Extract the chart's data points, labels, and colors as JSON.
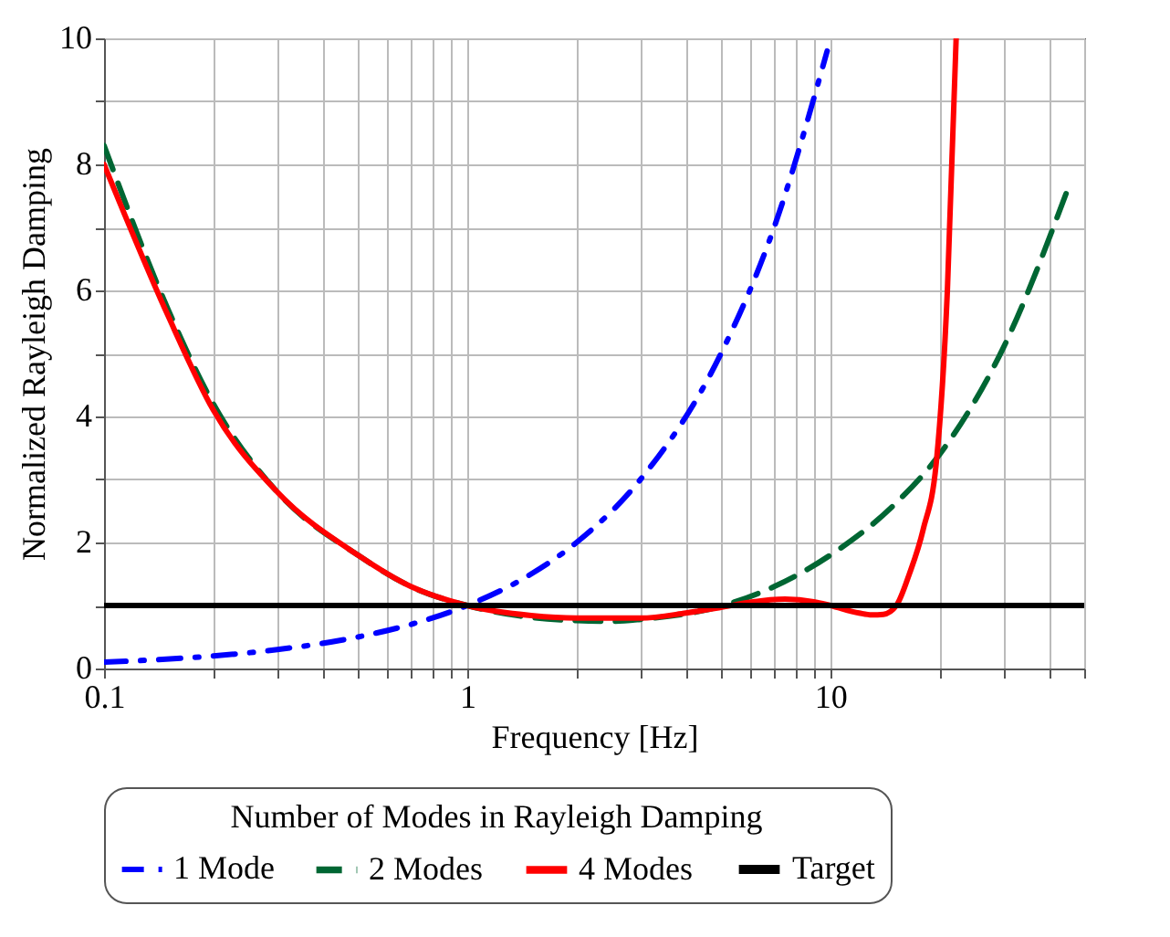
{
  "chart_data": {
    "type": "line",
    "xlabel": "Frequency [Hz]",
    "ylabel": "Normalized Rayleigh Damping",
    "legend_title": "Number of Modes in Rayleigh Damping",
    "log": "x",
    "grid": true,
    "legend": "bottom",
    "xlim": [
      0.1,
      50
    ],
    "ylim": [
      0,
      10
    ],
    "xticks": [
      0.1,
      {
        "value": 0.2,
        "label": null
      },
      {
        "value": 0.3,
        "label": null
      },
      {
        "value": 0.4,
        "label": null
      },
      {
        "value": 0.5,
        "label": null
      },
      {
        "value": 0.6,
        "label": null
      },
      {
        "value": 0.7,
        "label": null
      },
      {
        "value": 0.8,
        "label": null
      },
      {
        "value": 0.9,
        "label": null
      },
      1,
      {
        "value": 2,
        "label": null
      },
      {
        "value": 3,
        "label": null
      },
      {
        "value": 4,
        "label": null
      },
      {
        "value": 5,
        "label": null
      },
      {
        "value": 6,
        "label": null
      },
      {
        "value": 7,
        "label": null
      },
      {
        "value": 8,
        "label": null
      },
      {
        "value": 9,
        "label": null
      },
      10,
      {
        "value": 20,
        "label": null
      },
      {
        "value": 30,
        "label": null
      },
      {
        "value": 40,
        "label": null
      },
      {
        "value": 50,
        "label": null
      }
    ],
    "yticks": [
      0,
      {
        "value": 1,
        "label": null
      },
      2,
      {
        "value": 3,
        "label": null
      },
      4,
      {
        "value": 5,
        "label": null
      },
      6,
      {
        "value": 7,
        "label": null
      },
      8,
      {
        "value": 9,
        "label": null
      },
      10
    ],
    "series": [
      {
        "name": "1 Mode",
        "color": "#0000ff",
        "line_style": "dashdot",
        "x": [
          0.1,
          0.2,
          0.3,
          0.5,
          0.7,
          1,
          1.5,
          2,
          3,
          5,
          7,
          9.8
        ],
        "values": [
          0.1,
          0.2,
          0.3,
          0.5,
          0.7,
          1,
          1.5,
          2,
          3,
          5,
          7,
          9.8
        ]
      },
      {
        "name": "2 Modes",
        "color": "#006633",
        "line_style": "dashed",
        "x": [
          0.1,
          0.15,
          0.2,
          0.3,
          0.5,
          0.7,
          1,
          1.5,
          2,
          2.5,
          3,
          5,
          7,
          10,
          15,
          20,
          30,
          45
        ],
        "values": [
          8.3,
          5.7,
          4.2,
          2.8,
          1.8,
          1.3,
          1,
          0.81,
          0.76,
          0.75,
          0.78,
          0.99,
          1.3,
          1.8,
          2.6,
          3.4,
          5.1,
          7.6
        ]
      },
      {
        "name": "4 Modes",
        "color": "#ff0000",
        "line_style": "solid",
        "x": [
          0.1,
          0.15,
          0.2,
          0.3,
          0.5,
          0.7,
          1,
          1.5,
          2,
          3,
          4,
          5,
          6,
          7.5,
          9,
          10,
          12,
          13,
          14,
          15.2,
          16.5,
          18,
          19.6,
          21,
          22.2
        ],
        "values": [
          8.0,
          5.6,
          4.1,
          2.8,
          1.8,
          1.3,
          1,
          0.84,
          0.8,
          0.8,
          0.88,
          0.97,
          1.05,
          1.1,
          1.06,
          1.0,
          0.88,
          0.85,
          0.86,
          1.0,
          1.5,
          2.2,
          3.3,
          6,
          10
        ]
      },
      {
        "name": "Target",
        "color": "#000000",
        "line_style": "solid",
        "x": [
          0.1,
          50
        ],
        "values": [
          1,
          1
        ]
      }
    ]
  }
}
